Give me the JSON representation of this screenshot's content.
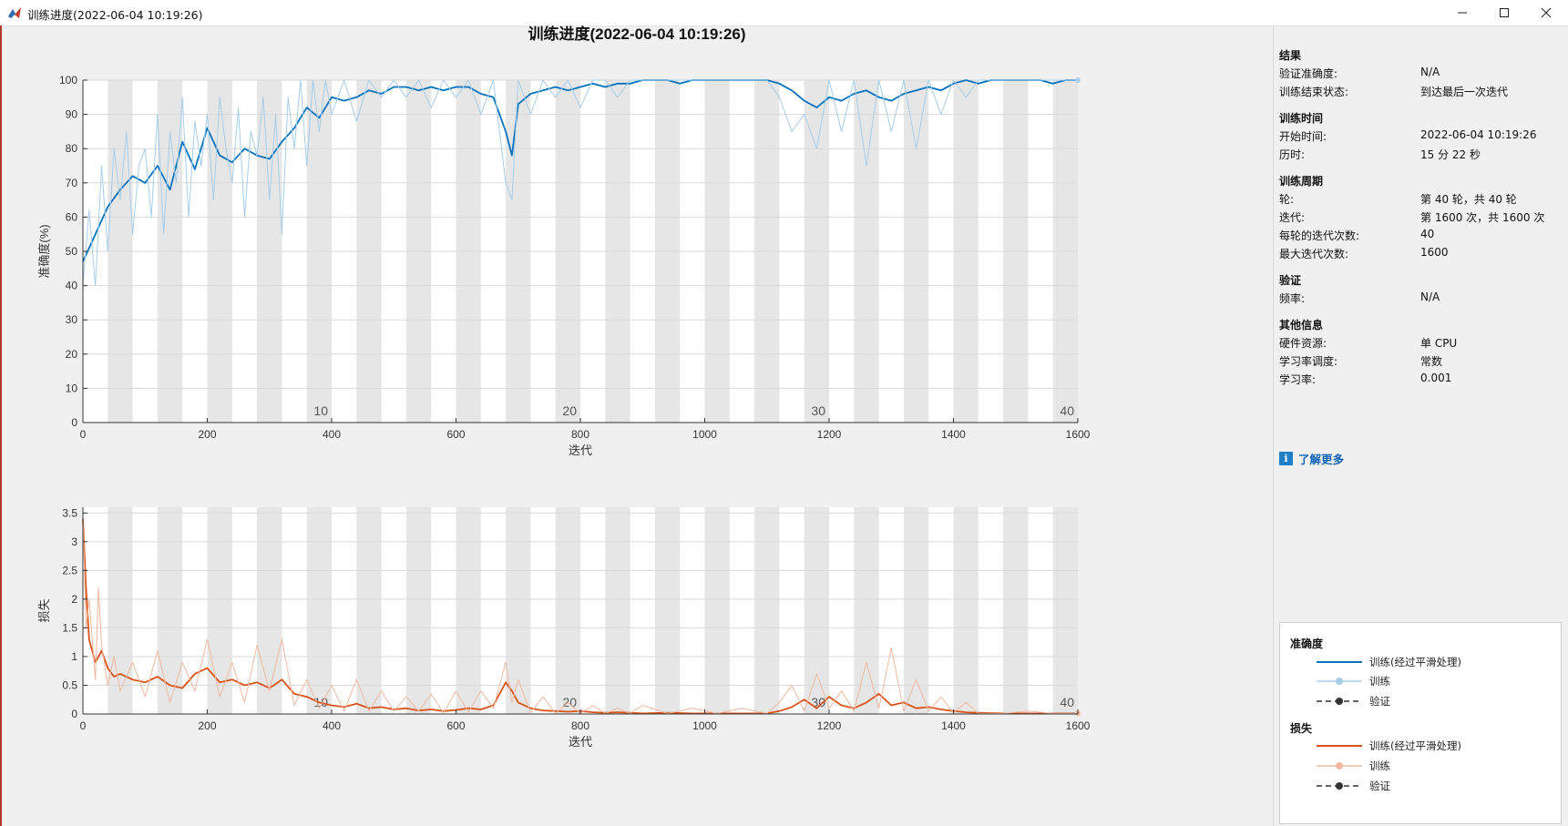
{
  "window": {
    "title": "训练进度(2022-06-04 10:19:26)",
    "minimize_icon": "minimize-icon",
    "maximize_icon": "maximize-icon",
    "close_icon": "close-icon"
  },
  "figure": {
    "title": "训练进度(2022-06-04 10:19:26)"
  },
  "chart_data": [
    {
      "type": "line",
      "title": "训练进度(2022-06-04 10:19:26)",
      "xlabel": "迭代",
      "ylabel": "准确度(%)",
      "xlim": [
        0,
        1600
      ],
      "ylim": [
        0,
        100
      ],
      "xticks": [
        0,
        200,
        400,
        600,
        800,
        1000,
        1200,
        1400,
        1600
      ],
      "yticks": [
        0,
        10,
        20,
        30,
        40,
        50,
        60,
        70,
        80,
        90,
        100
      ],
      "epoch_labels": [
        "10",
        "20",
        "30",
        "40"
      ],
      "epoch_length": 40,
      "grid": true,
      "series": [
        {
          "name": "训练(经过平滑处理)",
          "color": "#0072bd",
          "x": [
            0,
            20,
            40,
            60,
            80,
            100,
            120,
            140,
            160,
            180,
            200,
            220,
            240,
            260,
            280,
            300,
            320,
            340,
            360,
            380,
            400,
            420,
            440,
            460,
            480,
            500,
            520,
            540,
            560,
            580,
            600,
            620,
            640,
            660,
            680,
            690,
            700,
            720,
            740,
            760,
            780,
            800,
            820,
            840,
            860,
            880,
            900,
            920,
            940,
            960,
            980,
            1000,
            1020,
            1040,
            1060,
            1080,
            1100,
            1120,
            1140,
            1160,
            1180,
            1200,
            1220,
            1240,
            1260,
            1280,
            1300,
            1320,
            1340,
            1360,
            1380,
            1400,
            1420,
            1440,
            1460,
            1480,
            1500,
            1520,
            1540,
            1560,
            1580,
            1600
          ],
          "values": [
            47,
            55,
            63,
            68,
            72,
            70,
            75,
            68,
            82,
            74,
            86,
            78,
            76,
            80,
            78,
            77,
            82,
            86,
            92,
            89,
            95,
            94,
            95,
            97,
            96,
            98,
            98,
            97,
            98,
            97,
            98,
            98,
            96,
            95,
            85,
            78,
            93,
            96,
            97,
            98,
            97,
            98,
            99,
            98,
            99,
            99,
            100,
            100,
            100,
            99,
            100,
            100,
            100,
            100,
            100,
            100,
            100,
            99,
            97,
            94,
            92,
            95,
            94,
            96,
            97,
            95,
            94,
            96,
            97,
            98,
            97,
            99,
            100,
            99,
            100,
            100,
            100,
            100,
            100,
            99,
            100,
            100
          ]
        },
        {
          "name": "训练",
          "color": "#a7cde9",
          "x": [
            0,
            10,
            20,
            30,
            40,
            50,
            60,
            70,
            80,
            90,
            100,
            110,
            120,
            130,
            140,
            150,
            160,
            170,
            180,
            190,
            200,
            210,
            220,
            230,
            240,
            250,
            260,
            270,
            280,
            290,
            300,
            310,
            320,
            330,
            340,
            350,
            360,
            370,
            380,
            390,
            400,
            420,
            440,
            460,
            480,
            500,
            520,
            540,
            560,
            580,
            600,
            620,
            640,
            660,
            680,
            690,
            700,
            720,
            740,
            760,
            780,
            800,
            820,
            840,
            860,
            880,
            900,
            940,
            980,
            1020,
            1060,
            1100,
            1120,
            1140,
            1160,
            1180,
            1200,
            1220,
            1240,
            1260,
            1280,
            1300,
            1320,
            1340,
            1360,
            1380,
            1400,
            1420,
            1440,
            1480,
            1520,
            1560,
            1600
          ],
          "values": [
            40,
            62,
            40,
            75,
            50,
            80,
            65,
            85,
            55,
            75,
            80,
            60,
            90,
            55,
            85,
            70,
            95,
            60,
            88,
            75,
            90,
            65,
            95,
            80,
            70,
            92,
            60,
            85,
            78,
            95,
            65,
            90,
            55,
            95,
            80,
            100,
            75,
            100,
            85,
            100,
            90,
            100,
            88,
            100,
            95,
            100,
            95,
            100,
            92,
            100,
            95,
            100,
            90,
            100,
            70,
            65,
            100,
            90,
            100,
            95,
            100,
            92,
            100,
            100,
            95,
            100,
            100,
            100,
            100,
            100,
            100,
            100,
            95,
            85,
            90,
            80,
            100,
            85,
            100,
            75,
            100,
            85,
            100,
            80,
            100,
            90,
            100,
            95,
            100,
            100,
            100,
            100,
            100
          ]
        }
      ]
    },
    {
      "type": "line",
      "xlabel": "迭代",
      "ylabel": "损失",
      "xlim": [
        0,
        1600
      ],
      "ylim": [
        0,
        3.6
      ],
      "xticks": [
        0,
        200,
        400,
        600,
        800,
        1000,
        1200,
        1400,
        1600
      ],
      "yticks": [
        0,
        0.5,
        1,
        1.5,
        2,
        2.5,
        3,
        3.5
      ],
      "epoch_labels": [
        "10",
        "20",
        "30",
        "40"
      ],
      "epoch_length": 40,
      "grid": true,
      "series": [
        {
          "name": "训练(经过平滑处理)",
          "color": "#d95319",
          "x": [
            0,
            5,
            10,
            20,
            30,
            40,
            50,
            60,
            80,
            100,
            120,
            140,
            160,
            180,
            200,
            220,
            240,
            260,
            280,
            300,
            320,
            340,
            360,
            380,
            400,
            420,
            440,
            460,
            480,
            500,
            520,
            540,
            560,
            580,
            600,
            620,
            640,
            660,
            680,
            690,
            700,
            720,
            740,
            760,
            780,
            800,
            820,
            840,
            860,
            880,
            900,
            940,
            980,
            1020,
            1060,
            1100,
            1120,
            1140,
            1160,
            1180,
            1200,
            1220,
            1240,
            1260,
            1280,
            1300,
            1320,
            1340,
            1360,
            1380,
            1400,
            1420,
            1440,
            1480,
            1520,
            1560,
            1600
          ],
          "values": [
            3.4,
            2.2,
            1.3,
            0.9,
            1.1,
            0.8,
            0.65,
            0.7,
            0.6,
            0.55,
            0.65,
            0.5,
            0.45,
            0.7,
            0.8,
            0.55,
            0.6,
            0.5,
            0.55,
            0.45,
            0.6,
            0.35,
            0.3,
            0.2,
            0.15,
            0.12,
            0.18,
            0.1,
            0.12,
            0.08,
            0.1,
            0.06,
            0.08,
            0.05,
            0.07,
            0.1,
            0.08,
            0.15,
            0.55,
            0.4,
            0.2,
            0.1,
            0.06,
            0.05,
            0.04,
            0.05,
            0.03,
            0.02,
            0.03,
            0.02,
            0.01,
            0.02,
            0.01,
            0.01,
            0.01,
            0.01,
            0.05,
            0.12,
            0.25,
            0.1,
            0.3,
            0.15,
            0.1,
            0.2,
            0.35,
            0.15,
            0.2,
            0.1,
            0.12,
            0.08,
            0.05,
            0.03,
            0.02,
            0.01,
            0.01,
            0.01,
            0.01
          ]
        },
        {
          "name": "训练",
          "color": "#f0b9a0",
          "x": [
            0,
            5,
            10,
            20,
            25,
            30,
            40,
            50,
            60,
            80,
            100,
            120,
            140,
            160,
            180,
            200,
            220,
            240,
            260,
            280,
            300,
            320,
            340,
            360,
            380,
            400,
            420,
            440,
            460,
            480,
            500,
            520,
            540,
            560,
            580,
            600,
            620,
            640,
            660,
            680,
            690,
            700,
            720,
            740,
            760,
            780,
            800,
            820,
            840,
            860,
            880,
            900,
            940,
            980,
            1020,
            1060,
            1100,
            1120,
            1140,
            1160,
            1180,
            1200,
            1220,
            1240,
            1260,
            1280,
            1300,
            1320,
            1340,
            1360,
            1380,
            1400,
            1420,
            1440,
            1480,
            1520,
            1560,
            1600
          ],
          "values": [
            3.5,
            1.5,
            2.0,
            0.6,
            2.2,
            1.2,
            0.5,
            1.0,
            0.4,
            0.9,
            0.3,
            1.1,
            0.2,
            0.9,
            0.4,
            1.3,
            0.3,
            0.9,
            0.2,
            1.2,
            0.4,
            1.3,
            0.15,
            0.6,
            0.1,
            0.5,
            0.05,
            0.6,
            0.05,
            0.4,
            0.05,
            0.3,
            0.05,
            0.35,
            0.02,
            0.4,
            0.03,
            0.4,
            0.1,
            0.9,
            0.2,
            0.6,
            0.02,
            0.3,
            0.01,
            0.2,
            0.01,
            0.15,
            0.01,
            0.1,
            0.01,
            0.15,
            0.01,
            0.1,
            0.01,
            0.1,
            0.01,
            0.2,
            0.5,
            0.05,
            0.7,
            0.1,
            0.4,
            0.05,
            0.9,
            0.1,
            1.15,
            0.05,
            0.6,
            0.05,
            0.3,
            0.02,
            0.2,
            0.01,
            0.01,
            0.05,
            0.01,
            0.01
          ]
        }
      ]
    }
  ],
  "info": {
    "results": {
      "title": "结果",
      "rows": [
        {
          "key": "验证准确度:",
          "value": "N/A"
        },
        {
          "key": "训练结束状态:",
          "value": "到达最后一次迭代"
        }
      ]
    },
    "time": {
      "title": "训练时间",
      "rows": [
        {
          "key": "开始时间:",
          "value": "2022-06-04 10:19:26"
        },
        {
          "key": "历时:",
          "value": "15 分 22 秒"
        }
      ]
    },
    "cycle": {
      "title": "训练周期",
      "rows": [
        {
          "key": "轮:",
          "value": "第 40 轮，共 40 轮"
        },
        {
          "key": "迭代:",
          "value": "第 1600 次，共 1600 次"
        },
        {
          "key": "每轮的迭代次数:",
          "value": "40"
        },
        {
          "key": "最大迭代次数:",
          "value": "1600"
        }
      ]
    },
    "validation": {
      "title": "验证",
      "rows": [
        {
          "key": "频率:",
          "value": "N/A"
        }
      ]
    },
    "other": {
      "title": "其他信息",
      "rows": [
        {
          "key": "硬件资源:",
          "value": "单 CPU"
        },
        {
          "key": "学习率调度:",
          "value": "常数"
        },
        {
          "key": "学习率:",
          "value": "0.001"
        }
      ]
    },
    "learn_more": "了解更多",
    "learn_more_icon": "info-icon"
  },
  "legend": {
    "accuracy_title": "准确度",
    "loss_title": "损失",
    "accuracy_items": [
      {
        "label": "训练(经过平滑处理)",
        "color": "#0072bd",
        "style": "solid"
      },
      {
        "label": "训练",
        "color": "#a7cde9",
        "style": "marker"
      },
      {
        "label": "验证",
        "color": "#333333",
        "style": "dashed-marker"
      }
    ],
    "loss_items": [
      {
        "label": "训练(经过平滑处理)",
        "color": "#d95319",
        "style": "solid"
      },
      {
        "label": "训练",
        "color": "#f0b9a0",
        "style": "marker"
      },
      {
        "label": "验证",
        "color": "#333333",
        "style": "dashed-marker"
      }
    ]
  }
}
